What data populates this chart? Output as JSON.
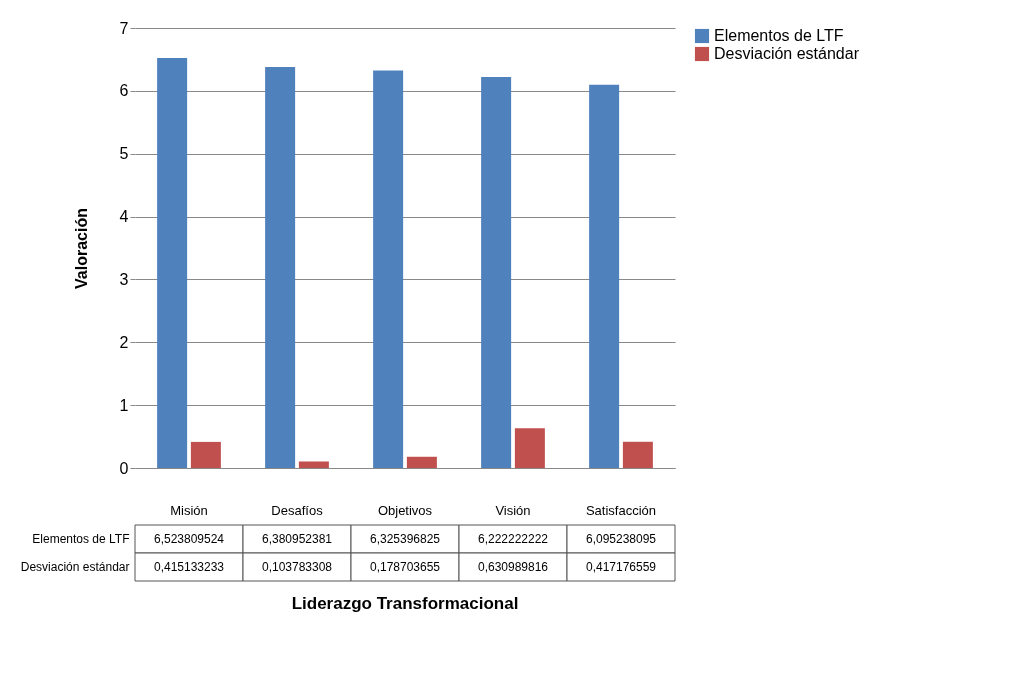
{
  "chart_data": {
    "type": "bar",
    "xlabel": "Liderazgo Transformacional",
    "ylabel": "Valoración",
    "categories": [
      "Misión",
      "Desafíos",
      "Objetivos",
      "Visión",
      "Satisfacción"
    ],
    "series": [
      {
        "name": "Elementos de LTF",
        "color": "#4f81bd",
        "values": [
          6.523809524,
          6.380952381,
          6.325396825,
          6.222222222,
          6.095238095
        ],
        "value_labels": [
          "6,523809524",
          "6,380952381",
          "6,325396825",
          "6,222222222",
          "6,095238095"
        ]
      },
      {
        "name": "Desviación estándar",
        "color": "#c0504d",
        "values": [
          0.415133233,
          0.103783308,
          0.178703655,
          0.630989816,
          0.417176559
        ],
        "value_labels": [
          "0,415133233",
          "0,103783308",
          "0,178703655",
          "0,630989816",
          "0,417176559"
        ]
      }
    ],
    "ylim": [
      0,
      7
    ],
    "yticks": [
      0,
      1,
      2,
      3,
      4,
      5,
      6,
      7
    ],
    "grid": "y",
    "legend": "right"
  }
}
